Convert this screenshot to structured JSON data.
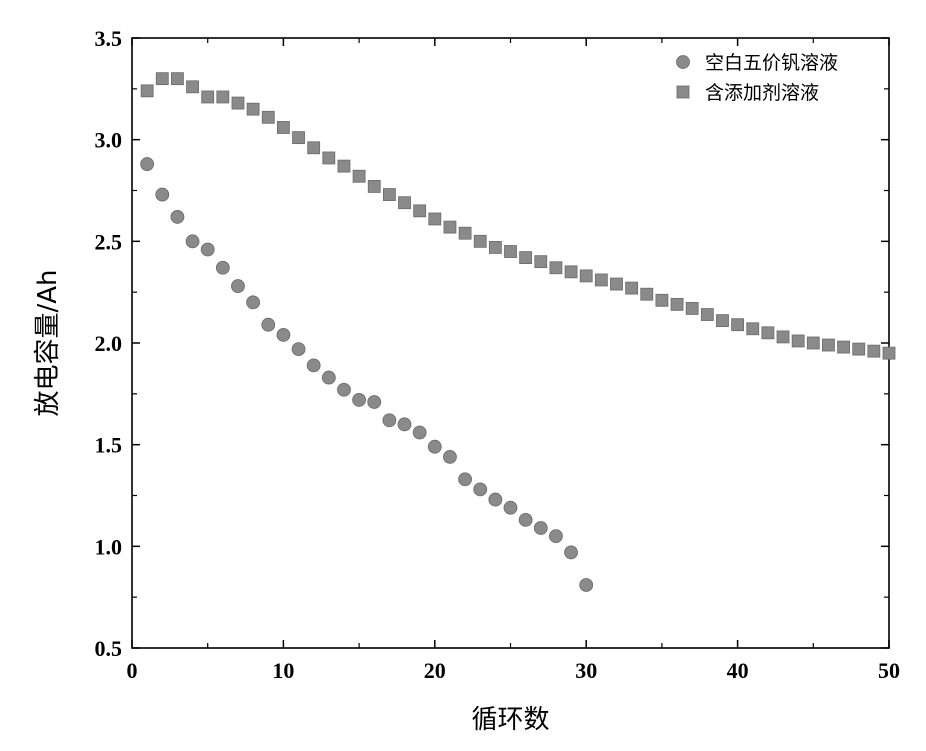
{
  "chart_data": {
    "type": "scatter",
    "xlabel": "循环数",
    "ylabel": "放电容量/Ah",
    "xlim": [
      0,
      50
    ],
    "ylim": [
      0.5,
      3.5
    ],
    "xticks": [
      0,
      10,
      20,
      30,
      40,
      50
    ],
    "yticks": [
      0.5,
      1.0,
      1.5,
      2.0,
      2.5,
      3.0,
      3.5
    ],
    "xtick_labels": [
      "0",
      "10",
      "20",
      "30",
      "40",
      "50"
    ],
    "ytick_labels": [
      "0.5",
      "1.0",
      "1.5",
      "2.0",
      "2.5",
      "3.0",
      "3.5"
    ],
    "grid": false,
    "legend_position": "top-right",
    "series": [
      {
        "name": "空白五价钒溶液",
        "marker": "circle",
        "color": "#8a8a8a",
        "x": [
          1,
          2,
          3,
          4,
          5,
          6,
          7,
          8,
          9,
          10,
          11,
          12,
          13,
          14,
          15,
          16,
          17,
          18,
          19,
          20,
          21,
          22,
          23,
          24,
          25,
          26,
          27,
          28,
          29,
          30
        ],
        "y": [
          2.88,
          2.73,
          2.62,
          2.5,
          2.46,
          2.37,
          2.28,
          2.2,
          2.09,
          2.04,
          1.97,
          1.89,
          1.83,
          1.77,
          1.72,
          1.71,
          1.62,
          1.6,
          1.56,
          1.49,
          1.44,
          1.33,
          1.28,
          1.23,
          1.19,
          1.13,
          1.09,
          1.05,
          0.97,
          0.81
        ]
      },
      {
        "name": "含添加剂溶液",
        "marker": "square",
        "color": "#8a8a8a",
        "x": [
          1,
          2,
          3,
          4,
          5,
          6,
          7,
          8,
          9,
          10,
          11,
          12,
          13,
          14,
          15,
          16,
          17,
          18,
          19,
          20,
          21,
          22,
          23,
          24,
          25,
          26,
          27,
          28,
          29,
          30,
          31,
          32,
          33,
          34,
          35,
          36,
          37,
          38,
          39,
          40,
          41,
          42,
          43,
          44,
          45,
          46,
          47,
          48,
          49,
          50
        ],
        "y": [
          3.24,
          3.3,
          3.3,
          3.26,
          3.21,
          3.21,
          3.18,
          3.15,
          3.11,
          3.06,
          3.01,
          2.96,
          2.91,
          2.87,
          2.82,
          2.77,
          2.73,
          2.69,
          2.65,
          2.61,
          2.57,
          2.54,
          2.5,
          2.47,
          2.45,
          2.42,
          2.4,
          2.37,
          2.35,
          2.33,
          2.31,
          2.29,
          2.27,
          2.24,
          2.21,
          2.19,
          2.17,
          2.14,
          2.11,
          2.09,
          2.07,
          2.05,
          2.03,
          2.01,
          2.0,
          1.99,
          1.98,
          1.97,
          1.96,
          1.95
        ]
      }
    ]
  }
}
